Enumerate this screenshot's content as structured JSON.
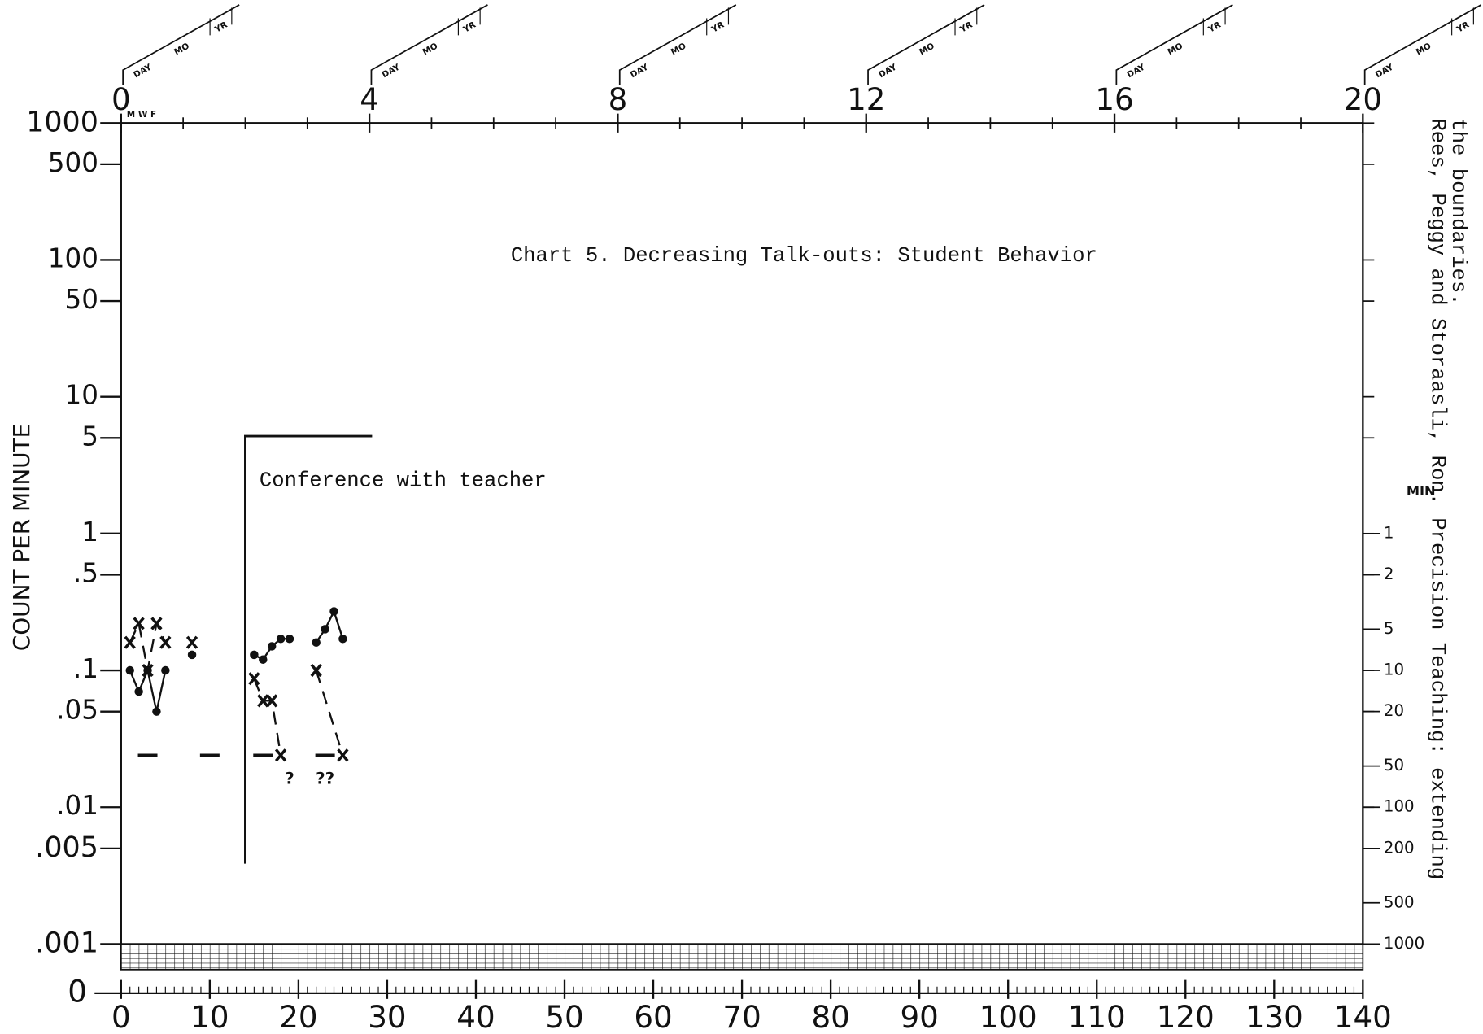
{
  "chart_data": {
    "type": "line",
    "title": "Chart 5.  Decreasing Talk-outs: Student Behavior",
    "ylabel": "COUNT PER MINUTE",
    "log_scale": true,
    "xlim": [
      0,
      140
    ],
    "xticks": [
      0,
      10,
      20,
      30,
      40,
      50,
      60,
      70,
      80,
      90,
      100,
      110,
      120,
      130,
      140
    ],
    "ylim": [
      0.001,
      1000
    ],
    "yticks": [
      {
        "value": 1000,
        "label": "1000"
      },
      {
        "value": 500,
        "label": "500"
      },
      {
        "value": 100,
        "label": "100"
      },
      {
        "value": 50,
        "label": "50"
      },
      {
        "value": 10,
        "label": "10"
      },
      {
        "value": 5,
        "label": "5"
      },
      {
        "value": 1,
        "label": "1"
      },
      {
        "value": 0.5,
        "label": ".5"
      },
      {
        "value": 0.1,
        "label": ".1"
      },
      {
        "value": 0.05,
        "label": ".05"
      },
      {
        "value": 0.01,
        "label": ".01"
      },
      {
        "value": 0.005,
        "label": ".005"
      },
      {
        "value": 0.001,
        "label": ".001"
      }
    ],
    "y_zero_label": "0",
    "x2lim": [
      0,
      20
    ],
    "x2ticks": [
      0,
      4,
      8,
      12,
      16,
      20
    ],
    "x2_sublabel": "M W F",
    "date_box_labels": [
      "DAY",
      "MO",
      "YR"
    ],
    "y2label": "MIN",
    "y2lim": [
      1000,
      0.001
    ],
    "y2ticks": [
      1,
      2,
      5,
      10,
      20,
      50,
      100,
      200,
      500,
      1000
    ],
    "series": [
      {
        "marker": "dot",
        "color": "#111",
        "dash": false,
        "x": [
          1,
          2,
          3,
          4,
          5,
          6,
          8,
          10,
          15,
          16,
          17,
          18,
          19,
          20,
          22,
          23,
          24,
          25
        ],
        "values": [
          0.1,
          0.07,
          0.1,
          0.05,
          0.1,
          null,
          0.13,
          null,
          0.13,
          0.12,
          0.15,
          0.17,
          0.17,
          null,
          0.16,
          0.2,
          0.27,
          0.17
        ]
      },
      {
        "marker": "x",
        "color": "#111",
        "dash": true,
        "x": [
          1,
          2,
          3,
          4,
          5,
          6,
          8,
          10,
          15,
          16,
          17,
          18,
          20,
          22,
          25
        ],
        "values": [
          0.16,
          0.22,
          0.1,
          0.22,
          0.16,
          null,
          0.16,
          null,
          0.087,
          0.06,
          0.06,
          0.024,
          null,
          0.1,
          0.024
        ]
      }
    ],
    "record_floors": {
      "x": [
        3,
        10,
        16,
        23
      ],
      "values": [
        0.024,
        0.024,
        0.024,
        0.024
      ]
    },
    "annotations": [
      {
        "text": "?",
        "x": 19,
        "y": 0.016
      },
      {
        "text": "??",
        "x": 23,
        "y": 0.016
      }
    ],
    "phase_line": {
      "x": 14,
      "label": "Conference with teacher"
    },
    "source": [
      "Rees, Peggy and Storaasli, Ron.  Precision Teaching: extending",
      "the boundaries."
    ]
  }
}
